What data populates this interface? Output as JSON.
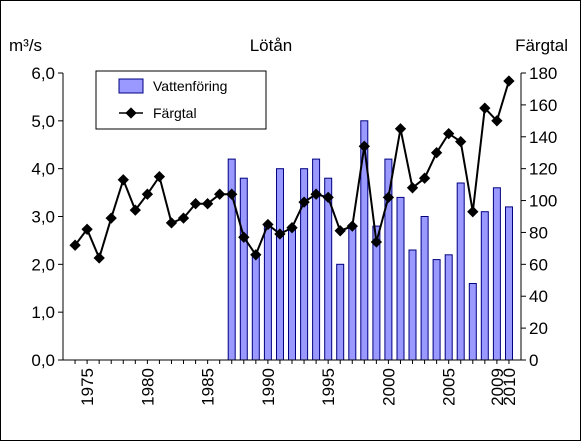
{
  "chart_data": {
    "type": "bar+line",
    "title": "Lötån",
    "ylabel_left": "m³/s",
    "ylabel_right": "Färgtal",
    "xlim": [
      1973,
      2011
    ],
    "ylim_left": [
      0,
      6
    ],
    "ylim_right": [
      0,
      180
    ],
    "yticks_left": [
      "0,0",
      "1,0",
      "2,0",
      "3,0",
      "4,0",
      "5,0",
      "6,0"
    ],
    "yticks_right": [
      "0",
      "20",
      "40",
      "60",
      "80",
      "100",
      "120",
      "140",
      "160",
      "180"
    ],
    "xticks": [
      "1975",
      "1980",
      "1985",
      "1990",
      "1995",
      "2000",
      "2005",
      "2009",
      "2010"
    ],
    "legend_position": "top-left",
    "colors": {
      "bar_fill": "#9999ff",
      "bar_stroke": "#000080",
      "line": "#000000",
      "marker": "#000000"
    },
    "series": [
      {
        "name": "Vattenföring",
        "kind": "bar",
        "axis": "left",
        "x": [
          1987,
          1988,
          1989,
          1990,
          1991,
          1992,
          1993,
          1994,
          1995,
          1996,
          1997,
          1998,
          1999,
          2000,
          2001,
          2002,
          2003,
          2004,
          2005,
          2006,
          2007,
          2008,
          2009,
          2010
        ],
        "values": [
          4.2,
          3.8,
          2.2,
          2.8,
          4.0,
          2.8,
          4.0,
          4.2,
          3.8,
          2.0,
          2.8,
          5.0,
          2.8,
          4.2,
          3.4,
          2.3,
          3.0,
          2.1,
          2.2,
          3.7,
          1.6,
          3.1,
          3.6,
          3.2
        ]
      },
      {
        "name": "Färgtal",
        "kind": "line",
        "axis": "right",
        "x": [
          1974,
          1975,
          1976,
          1977,
          1978,
          1979,
          1980,
          1981,
          1982,
          1983,
          1984,
          1985,
          1986,
          1987,
          1988,
          1989,
          1990,
          1991,
          1992,
          1993,
          1994,
          1995,
          1996,
          1997,
          1998,
          1999,
          2000,
          2001,
          2002,
          2003,
          2004,
          2005,
          2006,
          2007,
          2008,
          2009,
          2010
        ],
        "values": [
          72,
          82,
          64,
          89,
          113,
          94,
          104,
          115,
          86,
          89,
          98,
          98,
          104,
          104,
          77,
          66,
          85,
          79,
          83,
          99,
          104,
          102,
          81,
          84,
          134,
          74,
          102,
          145,
          108,
          114,
          130,
          142,
          137,
          93,
          158,
          150,
          175
        ]
      }
    ]
  },
  "legend": {
    "bar_label": "Vattenföring",
    "line_label": "Färgtal"
  }
}
